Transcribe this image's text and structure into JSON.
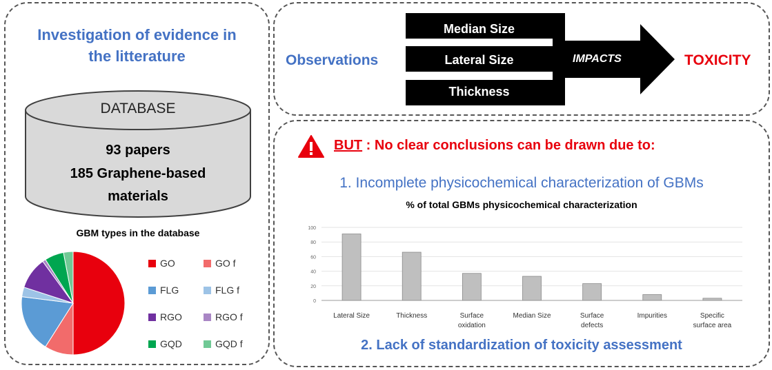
{
  "left": {
    "title_line1": "Investigation of evidence in",
    "title_line2": "the litterature",
    "database": {
      "label": "DATABASE",
      "line1": "93 papers",
      "line2": "185 Graphene-based",
      "line3": "materials"
    },
    "pie_title": "GBM types in the database",
    "pie_chart": {
      "type": "pie",
      "slices": [
        {
          "name": "GO",
          "value": 50,
          "color": "#E8000D"
        },
        {
          "name": "GO f",
          "value": 9,
          "color": "#F26B6B"
        },
        {
          "name": "FLG",
          "value": 18,
          "color": "#5B9BD5"
        },
        {
          "name": "FLG f",
          "value": 3,
          "color": "#9DC3E6"
        },
        {
          "name": "RGO",
          "value": 10,
          "color": "#7030A0"
        },
        {
          "name": "RGO f",
          "value": 1,
          "color": "#A986C5"
        },
        {
          "name": "GQD",
          "value": 6,
          "color": "#00A650"
        },
        {
          "name": "GQD f",
          "value": 3,
          "color": "#70C995"
        }
      ]
    },
    "legend": [
      {
        "label": "GO",
        "color": "#E8000D"
      },
      {
        "label": "GO f",
        "color": "#F26B6B"
      },
      {
        "label": "FLG",
        "color": "#5B9BD5"
      },
      {
        "label": "FLG f",
        "color": "#9DC3E6"
      },
      {
        "label": "RGO",
        "color": "#7030A0"
      },
      {
        "label": "RGO f",
        "color": "#A986C5"
      },
      {
        "label": "GQD",
        "color": "#00A650"
      },
      {
        "label": "GQD f",
        "color": "#70C995"
      }
    ]
  },
  "top": {
    "observations": "Observations",
    "bars": [
      "Median Size",
      "Lateral Size",
      "Thickness"
    ],
    "impacts": "IMPACTS",
    "toxicity": "TOXICITY"
  },
  "bottom": {
    "but": "BUT",
    "warning_rest": " : No clear conclusions can be drawn due to:",
    "point1": "1. Incomplete physicochemical characterization of GBMs",
    "chart_title": "% of total GBMs physicochemical characterization",
    "point2": "2. Lack of standardization of toxicity assessment"
  },
  "chart_data": {
    "type": "bar",
    "title": "% of total GBMs physicochemical characterization",
    "categories": [
      [
        "Lateral Size"
      ],
      [
        "Thickness"
      ],
      [
        "Surface",
        "oxidation"
      ],
      [
        "Median Size"
      ],
      [
        "Surface",
        "defects"
      ],
      [
        "Impurities"
      ],
      [
        "Specific",
        "surface area"
      ]
    ],
    "values": [
      91,
      66,
      37,
      33,
      23,
      8,
      3
    ],
    "ylim": [
      0,
      100
    ],
    "yticks": [
      0,
      20,
      40,
      60,
      80,
      100
    ],
    "grid": true,
    "bar_color": "#BFBFBF"
  }
}
